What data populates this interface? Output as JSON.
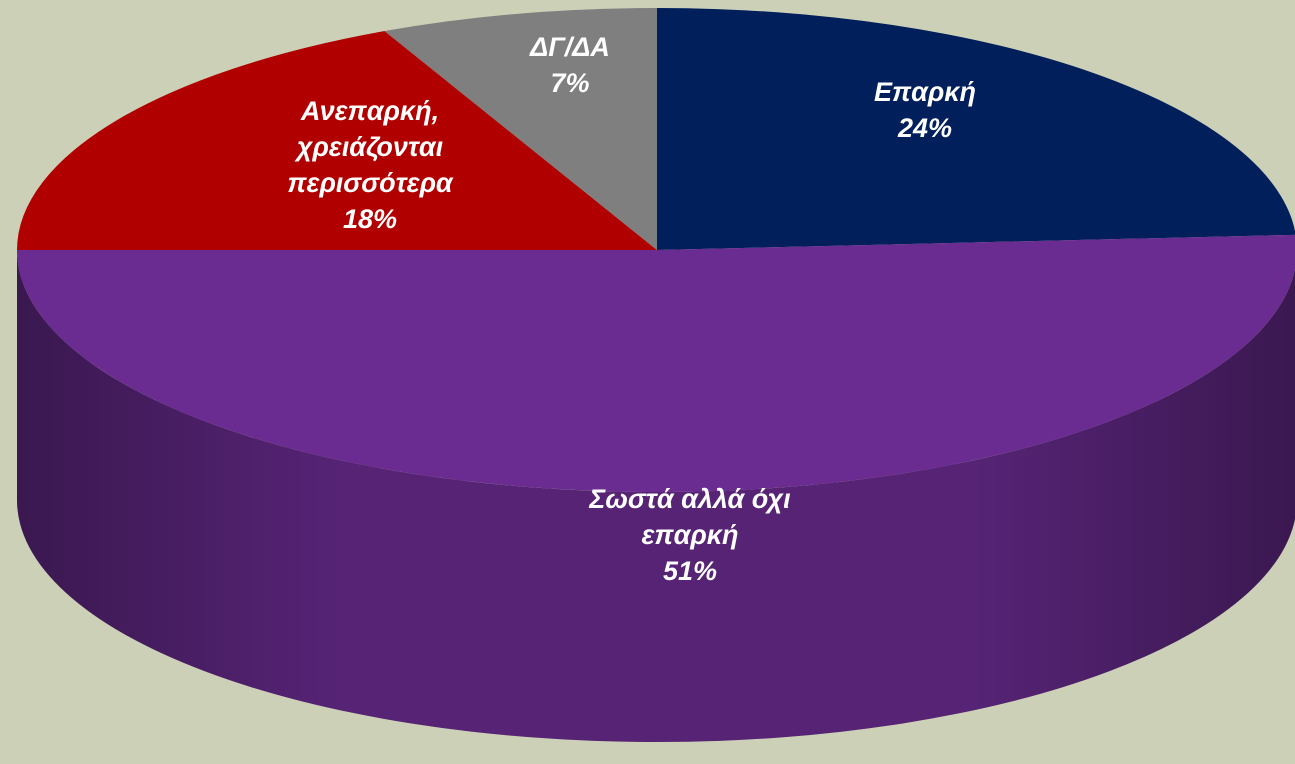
{
  "chart_data": {
    "type": "pie3d",
    "categories": [
      "Επαρκή",
      "Σωστά αλλά όχι επαρκή",
      "Ανεπαρκή, χρειάζονται περισσότερα",
      "ΔΓ/ΔΑ"
    ],
    "values": [
      24,
      51,
      18,
      7
    ],
    "value_labels": [
      "24%",
      "51%",
      "18%",
      "7%"
    ],
    "colors": [
      "#001f5b",
      "#6a2c91",
      "#b00000",
      "#7f7f7f"
    ]
  }
}
